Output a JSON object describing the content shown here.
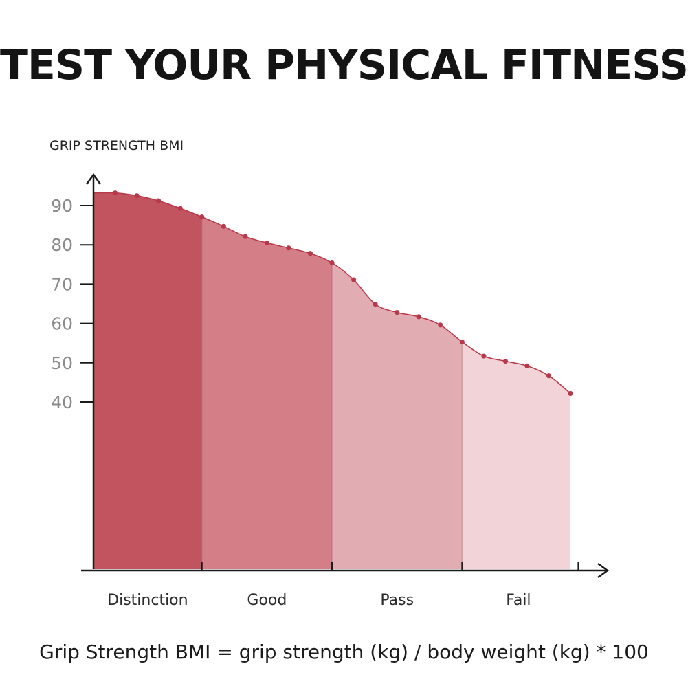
{
  "page": {
    "title": "TEST YOUR PHYSICAL FITNESS",
    "formula": "Grip Strength BMI = grip strength (kg) / body weight (kg) * 100"
  },
  "chart_data": {
    "type": "area",
    "title": "TEST YOUR PHYSICAL FITNESS",
    "ylabel": "GRIP STRENGTH BMI",
    "xlabel": "",
    "yticks": [
      90,
      80,
      70,
      60,
      50,
      40
    ],
    "grid": false,
    "categories": [
      "Distinction",
      "Good",
      "Pass",
      "Fail"
    ],
    "category_colors": [
      "#c2545f",
      "#d47f87",
      "#e2acb3",
      "#f2d3d7"
    ],
    "line_color": "#b83a4a",
    "bands": [
      {
        "name": "Distinction",
        "x_start": 0,
        "x_end": 5
      },
      {
        "name": "Good",
        "x_start": 5,
        "x_end": 11
      },
      {
        "name": "Pass",
        "x_start": 11,
        "x_end": 17
      },
      {
        "name": "Fail",
        "x_start": 17,
        "x_end": 22.2
      }
    ],
    "x": [
      1,
      2,
      3,
      4,
      5,
      6,
      7,
      8,
      9,
      10,
      11,
      12,
      13,
      14,
      15,
      16,
      17,
      18,
      19,
      20,
      21,
      22
    ],
    "values": [
      93.2,
      92.5,
      91.2,
      89.3,
      87.1,
      84.7,
      82.1,
      80.5,
      79.2,
      77.8,
      75.4,
      71.1,
      64.9,
      62.8,
      61.7,
      59.6,
      55.3,
      51.7,
      50.4,
      49.2,
      46.7,
      42.2
    ],
    "start_value": 93.2
  }
}
